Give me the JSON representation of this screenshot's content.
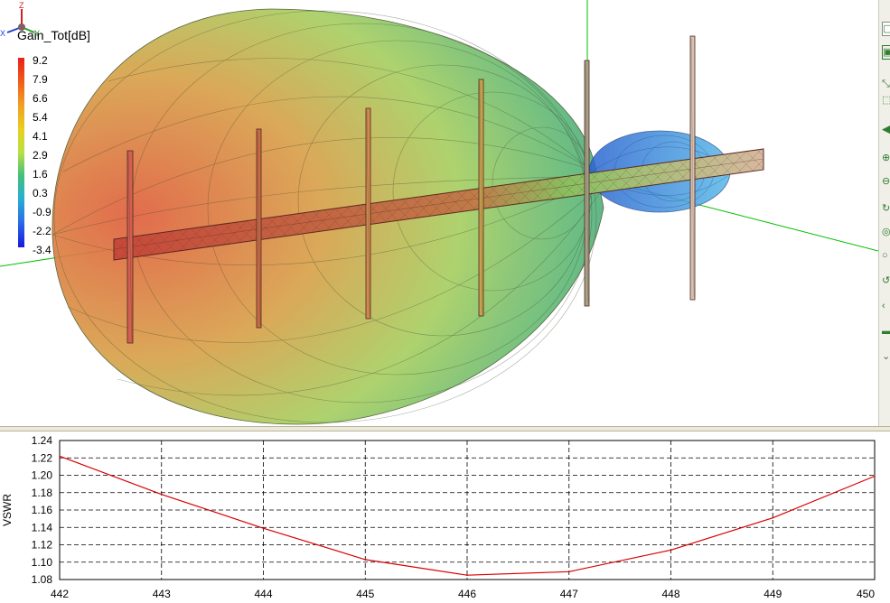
{
  "viewport": {
    "legend": {
      "title": "Gain_Tot[dB]",
      "ticks": [
        "9.2",
        "7.9",
        "6.6",
        "5.4",
        "4.1",
        "2.9",
        "1.6",
        "0.3",
        "-0.9",
        "-2.2",
        "-3.4"
      ]
    },
    "triad": {
      "z": "Z",
      "x": "X",
      "y": "Y"
    },
    "colors": {
      "lobe_red": "#e15a3c",
      "lobe_green": "#8ed36a",
      "back_lobe": "#4aa8e8",
      "boom": "#c86050",
      "axis_green": "#00c000"
    }
  },
  "toolbar": {
    "items": [
      {
        "icon": "select-icon"
      },
      {
        "icon": "fit-icon"
      },
      {
        "icon": "pan-icon"
      },
      {
        "icon": "zoom-window-icon"
      },
      {
        "icon": "rotate-left-icon"
      },
      {
        "icon": "zoom-in-icon"
      },
      {
        "icon": "zoom-out-icon"
      },
      {
        "icon": "rotate-icon"
      },
      {
        "icon": "orbit-icon"
      },
      {
        "icon": "spin-icon"
      },
      {
        "icon": "undo-view-icon"
      },
      {
        "icon": "arrow-left-icon"
      },
      {
        "icon": "minus-icon"
      },
      {
        "icon": "arrow-down-icon"
      }
    ]
  },
  "chart_data": {
    "type": "line",
    "title": "",
    "xlabel": "",
    "ylabel": "VSWR",
    "xlim": [
      442,
      450
    ],
    "ylim": [
      1.08,
      1.24
    ],
    "x_ticks": [
      "442",
      "443",
      "444",
      "445",
      "446",
      "447",
      "448",
      "449",
      "450"
    ],
    "y_ticks": [
      "1.24",
      "1.22",
      "1.20",
      "1.18",
      "1.16",
      "1.14",
      "1.12",
      "1.10",
      "1.08"
    ],
    "grid": true,
    "series": [
      {
        "color": "#d80000",
        "x": [
          442,
          443,
          444,
          445,
          446,
          447,
          448,
          449,
          450
        ],
        "y": [
          1.222,
          1.178,
          1.139,
          1.103,
          1.085,
          1.089,
          1.114,
          1.151,
          1.199
        ]
      }
    ]
  }
}
